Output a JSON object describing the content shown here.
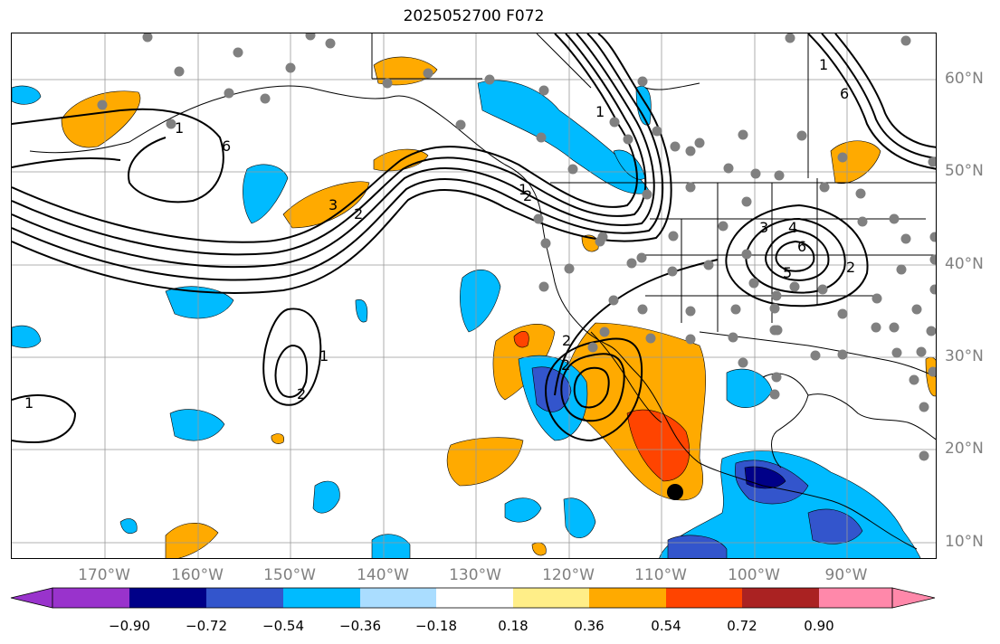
{
  "title": "2025052700 F072",
  "longitude_labels": [
    "170°W",
    "160°W",
    "150°W",
    "140°W",
    "130°W",
    "120°W",
    "110°W",
    "100°W",
    "90°W"
  ],
  "latitude_labels": [
    "60°N",
    "50°N",
    "40°N",
    "30°N",
    "20°N",
    "10°N"
  ],
  "colorbar": {
    "ticks": [
      "−0.90",
      "−0.72",
      "−0.54",
      "−0.36",
      "−0.18",
      "0.18",
      "0.36",
      "0.54",
      "0.72",
      "0.90"
    ],
    "colors": [
      "#9933cc",
      "#000088",
      "#3355cc",
      "#00bbff",
      "#aaddff",
      "#ffffff",
      "#ffee88",
      "#ffaa00",
      "#ff4400",
      "#aa2222",
      "#ff88aa"
    ]
  },
  "contour_labels": [
    "1",
    "6",
    "1",
    "2",
    "2",
    "3",
    "4",
    "6",
    "5",
    "2",
    "1",
    "2",
    "1",
    "2",
    "2",
    "3",
    "1",
    "6",
    "1"
  ],
  "colors": {
    "contour": "#000000",
    "station": "#808080",
    "grid": "#999999",
    "coast": "#000000"
  }
}
